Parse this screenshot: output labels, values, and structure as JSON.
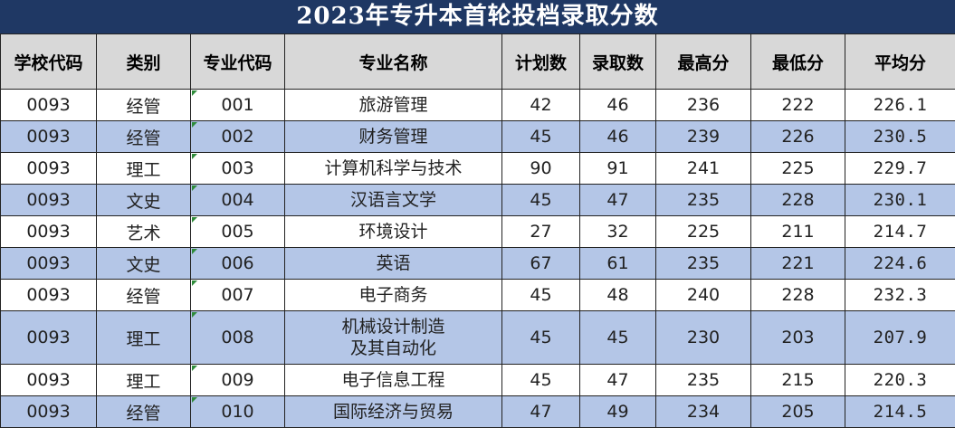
{
  "title": "2023年专升本首轮投档录取分数",
  "columns": [
    "学校代码",
    "类别",
    "专业代码",
    "专业名称",
    "计划数",
    "录取数",
    "最高分",
    "最低分",
    "平均分"
  ],
  "rows": [
    {
      "school": "0093",
      "category": "经管",
      "major_code": "001",
      "major_name": "旅游管理",
      "plan": "42",
      "admitted": "46",
      "max": "236",
      "min": "222",
      "avg": "226.1"
    },
    {
      "school": "0093",
      "category": "经管",
      "major_code": "002",
      "major_name": "财务管理",
      "plan": "45",
      "admitted": "46",
      "max": "239",
      "min": "226",
      "avg": "230.5"
    },
    {
      "school": "0093",
      "category": "理工",
      "major_code": "003",
      "major_name": "计算机科学与技术",
      "plan": "90",
      "admitted": "91",
      "max": "241",
      "min": "225",
      "avg": "229.7"
    },
    {
      "school": "0093",
      "category": "文史",
      "major_code": "004",
      "major_name": "汉语言文学",
      "plan": "45",
      "admitted": "47",
      "max": "235",
      "min": "228",
      "avg": "230.1"
    },
    {
      "school": "0093",
      "category": "艺术",
      "major_code": "005",
      "major_name": "环境设计",
      "plan": "27",
      "admitted": "32",
      "max": "225",
      "min": "211",
      "avg": "214.7"
    },
    {
      "school": "0093",
      "category": "文史",
      "major_code": "006",
      "major_name": "英语",
      "plan": "67",
      "admitted": "61",
      "max": "235",
      "min": "221",
      "avg": "224.6"
    },
    {
      "school": "0093",
      "category": "经管",
      "major_code": "007",
      "major_name": "电子商务",
      "plan": "45",
      "admitted": "48",
      "max": "240",
      "min": "228",
      "avg": "232.3"
    },
    {
      "school": "0093",
      "category": "理工",
      "major_code": "008",
      "major_name": "机械设计制造\n及其自动化",
      "plan": "45",
      "admitted": "45",
      "max": "230",
      "min": "203",
      "avg": "207.9"
    },
    {
      "school": "0093",
      "category": "理工",
      "major_code": "009",
      "major_name": "电子信息工程",
      "plan": "45",
      "admitted": "47",
      "max": "235",
      "min": "215",
      "avg": "220.3"
    },
    {
      "school": "0093",
      "category": "经管",
      "major_code": "010",
      "major_name": "国际经济与贸易",
      "plan": "47",
      "admitted": "49",
      "max": "234",
      "min": "205",
      "avg": "214.5"
    }
  ]
}
